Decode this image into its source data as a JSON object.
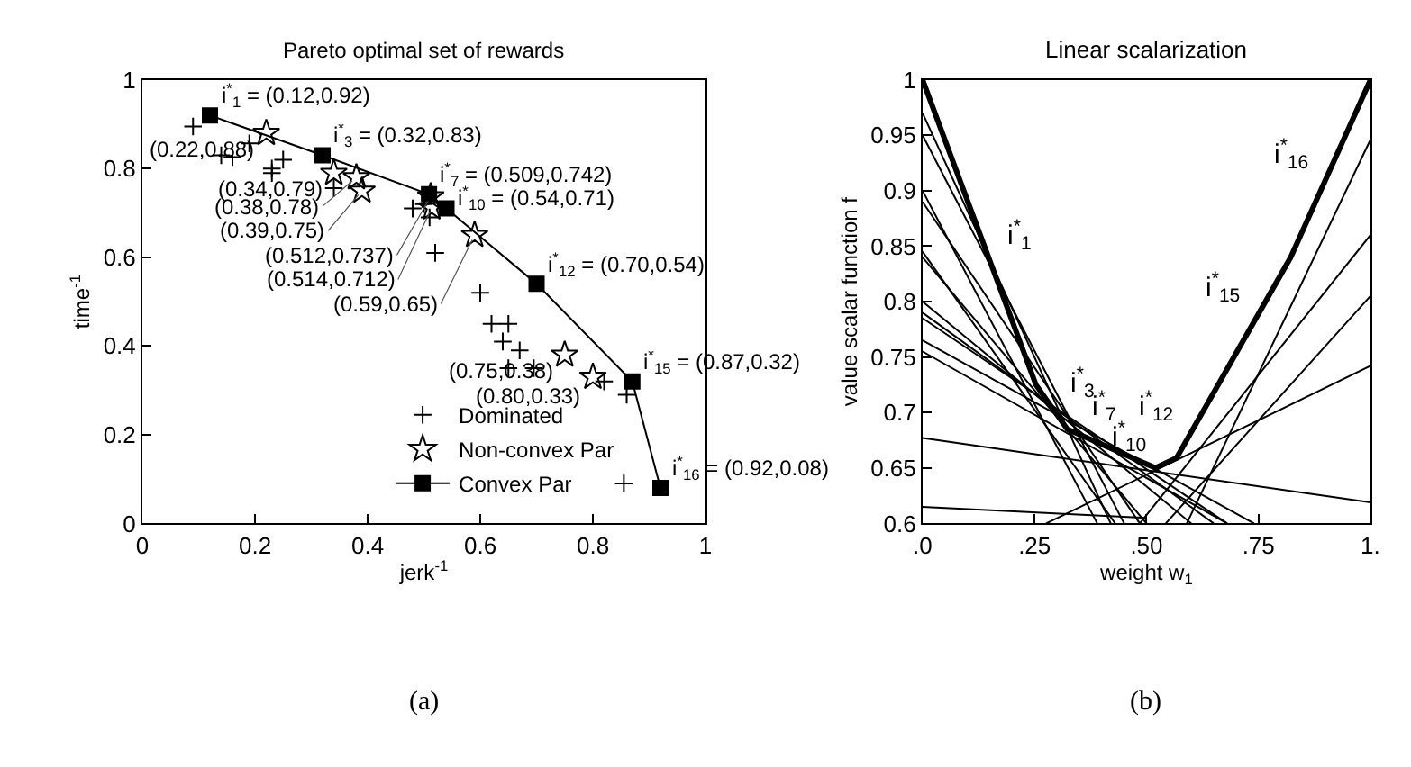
{
  "chart_data": [
    {
      "type": "scatter",
      "title": "Pareto optimal set of rewards",
      "xlabel": "jerk$^{-1}$",
      "ylabel": "time$^{-1}$",
      "xlim": [
        0,
        1
      ],
      "ylim": [
        0,
        1
      ],
      "xticks": [
        0,
        0.2,
        0.4,
        0.6,
        0.8,
        1
      ],
      "yticks": [
        0,
        0.2,
        0.4,
        0.6,
        0.8,
        1
      ],
      "legend": "bottom",
      "series": [
        {
          "name": "Dominated",
          "color": "#000000",
          "marker": "cross",
          "x": [
            0.09,
            0.19,
            0.14,
            0.16,
            0.25,
            0.34,
            0.23,
            0.23,
            0.48,
            0.5,
            0.51,
            0.52,
            0.6,
            0.62,
            0.65,
            0.64,
            0.67,
            0.65,
            0.695,
            0.82,
            0.86,
            0.855
          ],
          "values": [
            0.895,
            0.857,
            0.83,
            0.826,
            0.82,
            0.756,
            0.79,
            0.8,
            0.71,
            0.72,
            0.69,
            0.61,
            0.52,
            0.45,
            0.45,
            0.41,
            0.39,
            0.35,
            0.35,
            0.32,
            0.29,
            0.09
          ]
        },
        {
          "name": "Non-convex Par",
          "color": "#000000",
          "marker": "star",
          "x": [
            0.22,
            0.34,
            0.38,
            0.39,
            0.512,
            0.514,
            0.59,
            0.75,
            0.8
          ],
          "values": [
            0.88,
            0.79,
            0.78,
            0.75,
            0.737,
            0.712,
            0.65,
            0.38,
            0.33
          ]
        },
        {
          "name": "Convex Par",
          "type": "line",
          "color": "#000000",
          "marker": "square",
          "x": [
            0.12,
            0.32,
            0.509,
            0.54,
            0.7,
            0.87,
            0.92
          ],
          "values": [
            0.92,
            0.83,
            0.742,
            0.71,
            0.54,
            0.32,
            0.08
          ]
        }
      ],
      "annotations": [
        {
          "text": "i$^{*}$$_{1}$ = (0.12,0.92)",
          "x": 0.12,
          "y": 0.92
        },
        {
          "text": "i$^{*}$$_{3}$ = (0.32,0.83)",
          "x": 0.32,
          "y": 0.83
        },
        {
          "text": "i$^{*}$$_{7}$ = (0.509,0.742)",
          "x": 0.509,
          "y": 0.742
        },
        {
          "text": "i$^{*}$$_{10}$ = (0.54,0.71)",
          "x": 0.54,
          "y": 0.71
        },
        {
          "text": "i$^{*}$$_{12}$ = (0.70,0.54)",
          "x": 0.7,
          "y": 0.54
        },
        {
          "text": "i$^{*}$$_{15}$ = (0.87,0.32)",
          "x": 0.87,
          "y": 0.32
        },
        {
          "text": "i$^{*}$$_{16}$ = (0.92,0.08)",
          "x": 0.92,
          "y": 0.08
        },
        {
          "text": "(0.22,0.88)",
          "x": 0.22,
          "y": 0.88
        },
        {
          "text": "(0.34,0.79)",
          "x": 0.34,
          "y": 0.79
        },
        {
          "text": "(0.38,0.78)",
          "x": 0.38,
          "y": 0.78
        },
        {
          "text": "(0.39,0.75)",
          "x": 0.39,
          "y": 0.75
        },
        {
          "text": "(0.512,0.737)",
          "x": 0.512,
          "y": 0.737
        },
        {
          "text": "(0.514,0.712)",
          "x": 0.514,
          "y": 0.712
        },
        {
          "text": "(0.59,0.65)",
          "x": 0.59,
          "y": 0.65
        },
        {
          "text": "(0.75,0.38)",
          "x": 0.75,
          "y": 0.38
        },
        {
          "text": "(0.80,0.33)",
          "x": 0.8,
          "y": 0.33
        },
        "(a)"
      ]
    },
    {
      "type": "line",
      "title": "Linear scalarization",
      "xlabel": "weight w$_{1}$",
      "ylabel": "value scalar function f",
      "xlim": [
        0,
        1
      ],
      "ylim": [
        0.6,
        1
      ],
      "xticks": [
        {
          "value": 0,
          "label": ".0"
        },
        {
          "value": 0.25,
          "label": ".25"
        },
        {
          "value": 0.5,
          "label": ".50"
        },
        {
          "value": 0.75,
          "label": ".75"
        },
        {
          "value": 1,
          "label": "1."
        }
      ],
      "yticks": [
        0.6,
        0.65,
        0.7,
        0.75,
        0.8,
        0.85,
        0.9,
        0.95,
        1
      ],
      "series": [
        {
          "color": "#000000",
          "x": [
            0,
            0.253,
            0.323,
            0.52,
            0.567,
            0.822,
            1
          ],
          "values": [
            1,
            0.725,
            0.685,
            0.65,
            0.659,
            0.84,
            1
          ]
        },
        {
          "color": "#000000",
          "x": [
            0,
            0.42
          ],
          "values": [
            0.97,
            0.6
          ]
        },
        {
          "color": "#000000",
          "x": [
            0,
            0.45
          ],
          "values": [
            0.95,
            0.6
          ]
        },
        {
          "color": "#000000",
          "x": [
            0,
            0.39
          ],
          "values": [
            0.9,
            0.6
          ]
        },
        {
          "color": "#000000",
          "x": [
            0,
            0.485
          ],
          "values": [
            0.89,
            0.6
          ]
        },
        {
          "color": "#000000",
          "x": [
            0,
            0.43
          ],
          "values": [
            0.845,
            0.6
          ]
        },
        {
          "color": "#000000",
          "x": [
            0,
            0.5
          ],
          "values": [
            0.84,
            0.6
          ]
        },
        {
          "color": "#000000",
          "x": [
            0,
            0.6
          ],
          "values": [
            0.8,
            0.6
          ]
        },
        {
          "color": "#000000",
          "x": [
            0,
            0.65
          ],
          "values": [
            0.79,
            0.6
          ]
        },
        {
          "color": "#000000",
          "x": [
            0,
            0.68
          ],
          "values": [
            0.785,
            0.6
          ]
        },
        {
          "color": "#000000",
          "x": [
            0,
            0.74
          ],
          "values": [
            0.765,
            0.6
          ]
        },
        {
          "color": "#000000",
          "x": [
            0,
            0.68
          ],
          "values": [
            0.755,
            0.6
          ]
        },
        {
          "color": "#000000",
          "x": [
            0,
            1
          ],
          "values": [
            0.677,
            0.619
          ]
        },
        {
          "color": "#000000",
          "x": [
            0,
            0.5
          ],
          "values": [
            0.615,
            0.605
          ]
        },
        {
          "color": "#000000",
          "x": [
            0.59,
            1
          ],
          "values": [
            0.6,
            0.946
          ]
        },
        {
          "color": "#000000",
          "x": [
            0.485,
            1
          ],
          "values": [
            0.6,
            0.86
          ]
        },
        {
          "color": "#000000",
          "x": [
            0.543,
            1
          ],
          "values": [
            0.6,
            0.805
          ]
        },
        {
          "color": "#000000",
          "x": [
            0.276,
            1
          ],
          "values": [
            0.6,
            0.742
          ]
        }
      ],
      "annotations": [
        {
          "text": "i$^{*}$$_{1}$",
          "x": 0.15,
          "y": 0.837
        },
        {
          "text": "i$^{*}$$_{3}$",
          "x": 0.29,
          "y": 0.704
        },
        {
          "text": "i$^{*}$$_{7}$",
          "x": 0.34,
          "y": 0.682
        },
        {
          "text": "i$^{*}$$_{12}$",
          "x": 0.6,
          "y": 0.682
        },
        {
          "text": "i$^{*}$$_{10}$",
          "x": 0.54,
          "y": 0.654
        },
        {
          "text": "i$^{*}$$_{15}$",
          "x": 0.75,
          "y": 0.789
        },
        {
          "text": "i$^{*}$$_{16}$",
          "x": 0.9,
          "y": 0.91
        },
        "(b)"
      ]
    }
  ]
}
